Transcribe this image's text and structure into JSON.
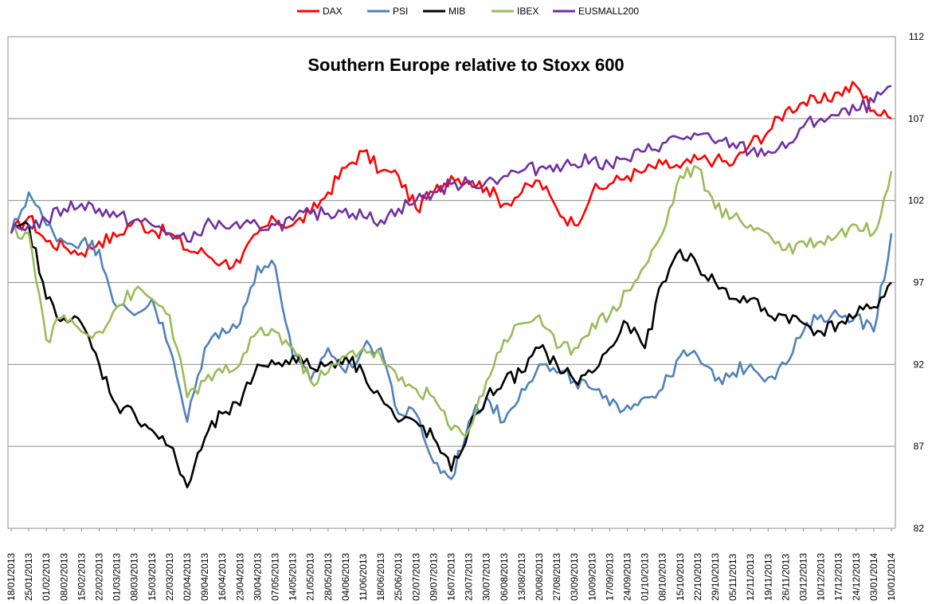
{
  "chart_data": {
    "type": "line",
    "title": "Southern Europe relative to Stoxx 600",
    "xlabel": "",
    "ylabel": "",
    "ylim": [
      82,
      112
    ],
    "yticks": [
      82,
      87,
      92,
      97,
      102,
      107,
      112
    ],
    "y_axis_side": "right",
    "grid": "horizontal",
    "legend_position": "top",
    "x_labels": [
      "18/01/2013",
      "25/01/2013",
      "01/02/2013",
      "08/02/2013",
      "15/02/2013",
      "22/02/2013",
      "01/03/2013",
      "08/03/2013",
      "15/03/2013",
      "22/03/2013",
      "02/04/2013",
      "09/04/2013",
      "16/04/2013",
      "23/04/2013",
      "30/04/2013",
      "07/05/2013",
      "14/05/2013",
      "21/05/2013",
      "28/05/2013",
      "04/06/2013",
      "11/06/2013",
      "18/06/2013",
      "25/06/2013",
      "02/07/2013",
      "09/07/2013",
      "16/07/2013",
      "23/07/2013",
      "30/07/2013",
      "06/08/2013",
      "13/08/2013",
      "20/08/2013",
      "27/08/2013",
      "03/09/2013",
      "10/09/2013",
      "17/09/2013",
      "24/09/2013",
      "01/10/2013",
      "08/10/2013",
      "15/10/2013",
      "22/10/2013",
      "29/10/2013",
      "05/11/2013",
      "12/11/2013",
      "19/11/2013",
      "26/11/2013",
      "03/12/2013",
      "10/12/2013",
      "17/12/2013",
      "24/12/2013",
      "03/01/2014",
      "10/01/2014"
    ],
    "series": [
      {
        "name": "DAX",
        "color": "#ff0000",
        "values": [
          100,
          101,
          99.5,
          99.2,
          98.8,
          99.5,
          99.8,
          100.8,
          100.2,
          100,
          99,
          98.8,
          98.2,
          98.2,
          100,
          100.8,
          100.5,
          101.2,
          102.5,
          104,
          105,
          103.8,
          103.5,
          101.5,
          102.5,
          103.5,
          103.2,
          102.8,
          101.8,
          102.5,
          103.2,
          101.5,
          100.5,
          102.5,
          103,
          103.5,
          103.8,
          104.2,
          104,
          104.5,
          104.5,
          104.2,
          105.5,
          106.2,
          107.5,
          108,
          108,
          108.6,
          109,
          107.5,
          107
        ]
      },
      {
        "name": "PSI",
        "color": "#4f81bd",
        "values": [
          100,
          102.5,
          100.5,
          99.5,
          99.5,
          99,
          95.5,
          95,
          96,
          93,
          88.5,
          93,
          94.2,
          94.5,
          98,
          98,
          92.5,
          91,
          93,
          91.5,
          93,
          93,
          89,
          89,
          86,
          85,
          88.5,
          90,
          88.5,
          90.5,
          92,
          91.5,
          91,
          90.5,
          89.5,
          89.5,
          90,
          90.5,
          92.5,
          92.5,
          91,
          91.5,
          92,
          91.2,
          92,
          94,
          95,
          95,
          95,
          94,
          100
        ]
      },
      {
        "name": "MIB",
        "color": "#000000",
        "values": [
          100,
          100.5,
          96,
          94.8,
          94.5,
          92,
          89.5,
          89,
          88,
          87,
          84.5,
          87.5,
          89,
          89.5,
          92,
          92,
          92.5,
          91.8,
          92,
          92.5,
          91.5,
          90,
          88.5,
          88.5,
          87.5,
          85.5,
          88,
          90,
          91,
          91.5,
          93,
          92,
          91,
          91.5,
          93,
          94.5,
          93,
          97,
          99,
          98,
          97,
          96,
          96,
          95,
          95,
          94.5,
          94,
          94.5,
          95,
          95.5,
          97
        ]
      },
      {
        "name": "IBEX",
        "color": "#9bbb59",
        "values": [
          100,
          100,
          93.5,
          95,
          94,
          94,
          95.5,
          96.5,
          96,
          95,
          90,
          91,
          91.5,
          92,
          94,
          94,
          93,
          91,
          91.5,
          92.5,
          93,
          92.5,
          91,
          90.5,
          90,
          88,
          88,
          91,
          93.5,
          94.5,
          95,
          93,
          93,
          94.5,
          95,
          96.5,
          98,
          100,
          103.5,
          104,
          101.5,
          101,
          100.5,
          100,
          99,
          99.5,
          99.5,
          100,
          100.5,
          100,
          103.8
        ]
      },
      {
        "name": "EUSMALL200",
        "color": "#7030a0",
        "values": [
          100,
          100.5,
          100.8,
          101.5,
          101.8,
          101.5,
          101,
          100.8,
          100.5,
          100,
          99.5,
          100.5,
          100.5,
          100.3,
          100.5,
          100.5,
          100.8,
          101.2,
          101.2,
          101.5,
          101,
          100.8,
          101.5,
          102,
          102.5,
          103,
          103,
          103.2,
          103.5,
          103.8,
          104,
          104.2,
          104.2,
          104.5,
          104.2,
          104.5,
          105,
          105.5,
          105.8,
          106,
          105.5,
          105.5,
          105,
          105,
          105.2,
          106.5,
          107,
          107.2,
          107.5,
          108,
          109
        ]
      }
    ]
  }
}
